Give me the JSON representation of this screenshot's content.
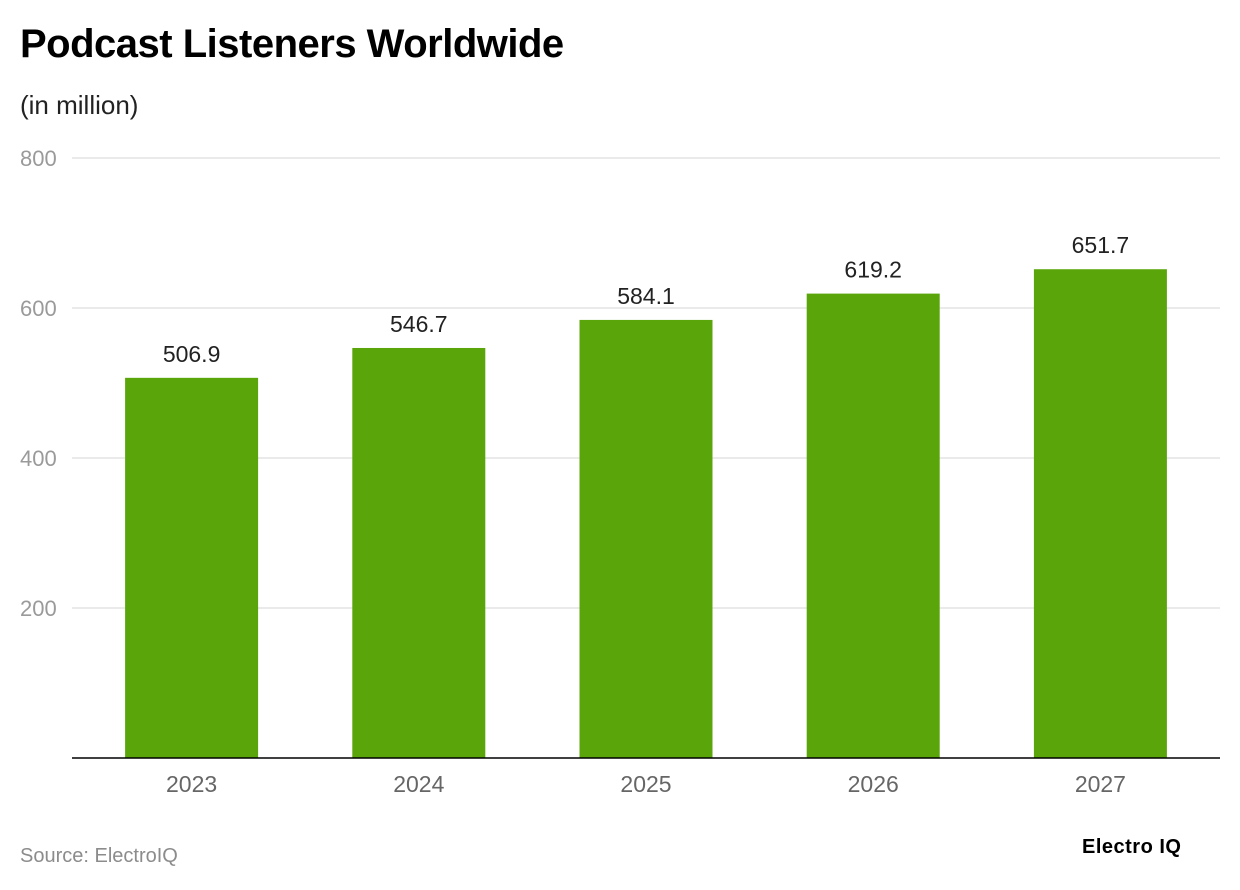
{
  "header": {
    "title": "Podcast Listeners Worldwide",
    "subtitle": "(in million)"
  },
  "footer": {
    "source": "Source: ElectroIQ",
    "brand": "Electro IQ"
  },
  "colors": {
    "bar": "#5aa60a",
    "grid": "#e3e3e3",
    "axis_text": "#9a9a9a",
    "label_text": "#222222",
    "baseline": "#000000"
  },
  "chart_data": {
    "type": "bar",
    "title": "Podcast Listeners Worldwide",
    "subtitle": "(in million)",
    "categories": [
      "2023",
      "2024",
      "2025",
      "2026",
      "2027"
    ],
    "values": [
      506.9,
      546.7,
      584.1,
      619.2,
      651.7
    ],
    "data_labels": [
      "506.9",
      "546.7",
      "584.1",
      "619.2",
      "651.7"
    ],
    "ylim": [
      0,
      800
    ],
    "yticks": [
      200,
      400,
      600,
      800
    ],
    "ytick_labels": [
      "200",
      "400",
      "600",
      "800"
    ],
    "grid": true,
    "legend": false
  }
}
